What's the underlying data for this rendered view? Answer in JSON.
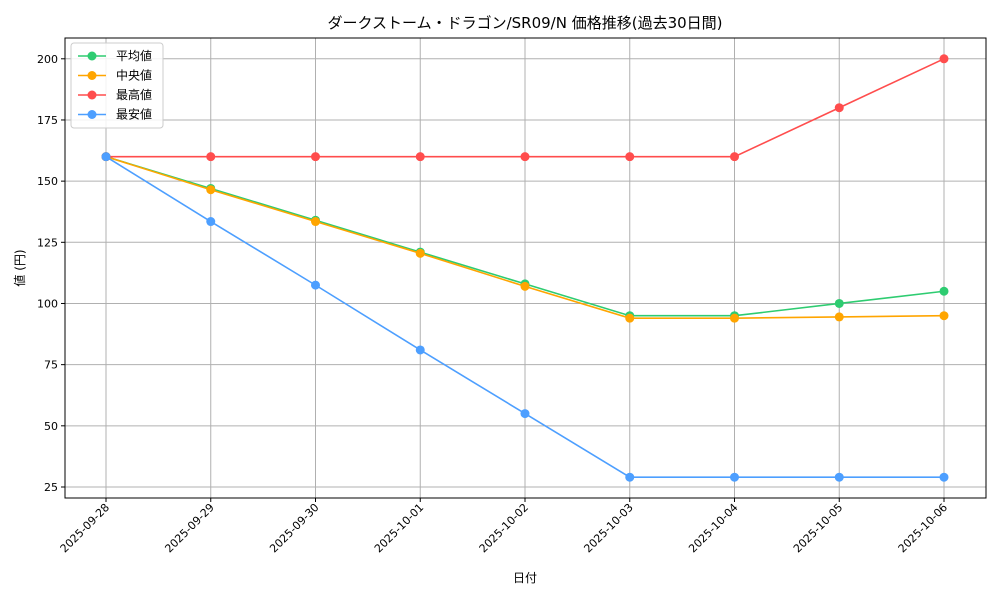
{
  "chart_data": {
    "type": "line",
    "title": "ダークストーム・ドラゴン/SR09/N 価格推移(過去30日間)",
    "xlabel": "日付",
    "ylabel": "値 (円)",
    "categories": [
      "2025-09-28",
      "2025-09-29",
      "2025-09-30",
      "2025-10-01",
      "2025-10-02",
      "2025-10-03",
      "2025-10-04",
      "2025-10-05",
      "2025-10-06"
    ],
    "ylim": [
      20.5,
      208.5
    ],
    "yticks": [
      25,
      50,
      75,
      100,
      125,
      150,
      175,
      200
    ],
    "grid": true,
    "legend_position": "top-left",
    "series": [
      {
        "name": "平均値",
        "color": "#2ecc71",
        "values": [
          160,
          147,
          134,
          121,
          108,
          95,
          95,
          100,
          105
        ]
      },
      {
        "name": "中央値",
        "color": "#ffa500",
        "values": [
          160,
          146.5,
          133.5,
          120.5,
          107,
          94,
          94,
          94.5,
          95
        ]
      },
      {
        "name": "最高値",
        "color": "#ff4d4d",
        "values": [
          160,
          160,
          160,
          160,
          160,
          160,
          160,
          180,
          200
        ]
      },
      {
        "name": "最安値",
        "color": "#4d9fff",
        "values": [
          160,
          133.5,
          107.5,
          81,
          55,
          29,
          29,
          29,
          29
        ]
      }
    ]
  }
}
